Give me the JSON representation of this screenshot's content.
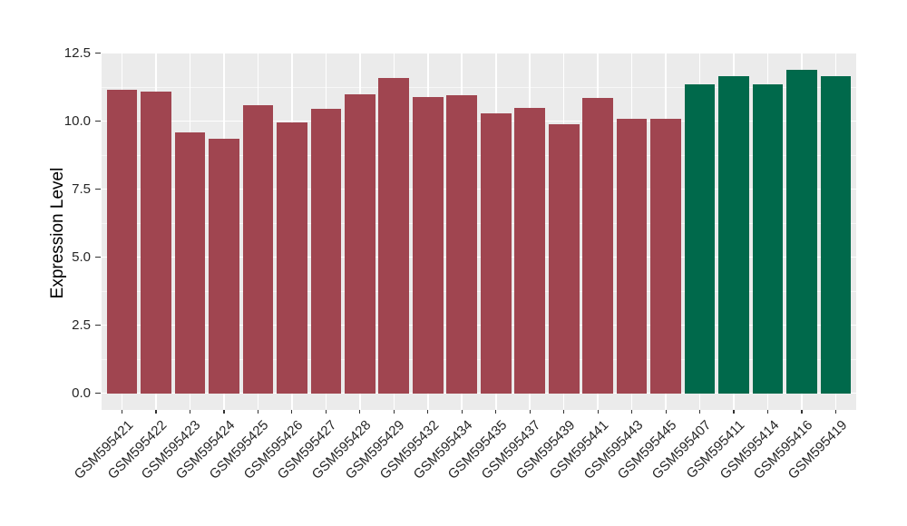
{
  "chart_data": {
    "type": "bar",
    "title": "",
    "xlabel": "",
    "ylabel": "Expression Level",
    "ylim": [
      0,
      12.5
    ],
    "yticks": [
      0,
      2.5,
      5,
      7.5,
      10,
      12.5
    ],
    "ytick_labels": [
      "0.0",
      "2.5",
      "5.0",
      "7.5",
      "10.0",
      "12.5"
    ],
    "grid": "white major and minor horizontal gridlines, white vertical gridlines at bar centers, on gray panel",
    "legend_position": "none",
    "categories": [
      "GSM595421",
      "GSM595422",
      "GSM595423",
      "GSM595424",
      "GSM595425",
      "GSM595426",
      "GSM595427",
      "GSM595428",
      "GSM595429",
      "GSM595432",
      "GSM595434",
      "GSM595435",
      "GSM595437",
      "GSM595439",
      "GSM595441",
      "GSM595443",
      "GSM595445",
      "GSM595407",
      "GSM595411",
      "GSM595414",
      "GSM595416",
      "GSM595419"
    ],
    "values": [
      11.15,
      11.1,
      9.6,
      9.35,
      10.6,
      9.95,
      10.45,
      11.0,
      11.6,
      10.9,
      10.95,
      10.3,
      10.5,
      9.9,
      10.85,
      10.1,
      10.1,
      11.35,
      11.65,
      11.35,
      11.9,
      11.65
    ],
    "bar_colors": [
      "#A04550",
      "#A04550",
      "#A04550",
      "#A04550",
      "#A04550",
      "#A04550",
      "#A04550",
      "#A04550",
      "#A04550",
      "#A04550",
      "#A04550",
      "#A04550",
      "#A04550",
      "#A04550",
      "#A04550",
      "#A04550",
      "#A04550",
      "#00694B",
      "#00694B",
      "#00694B",
      "#00694B",
      "#00694B"
    ],
    "colors": {
      "maroon_group": "#A04550",
      "green_group": "#00694B",
      "panel_background": "#EBEBEB",
      "gridline_major": "#FFFFFF",
      "gridline_minor": "#FFFFFF",
      "axis_text": "#262626",
      "axis_title": "#000000",
      "tick_marks": "#333333"
    }
  }
}
